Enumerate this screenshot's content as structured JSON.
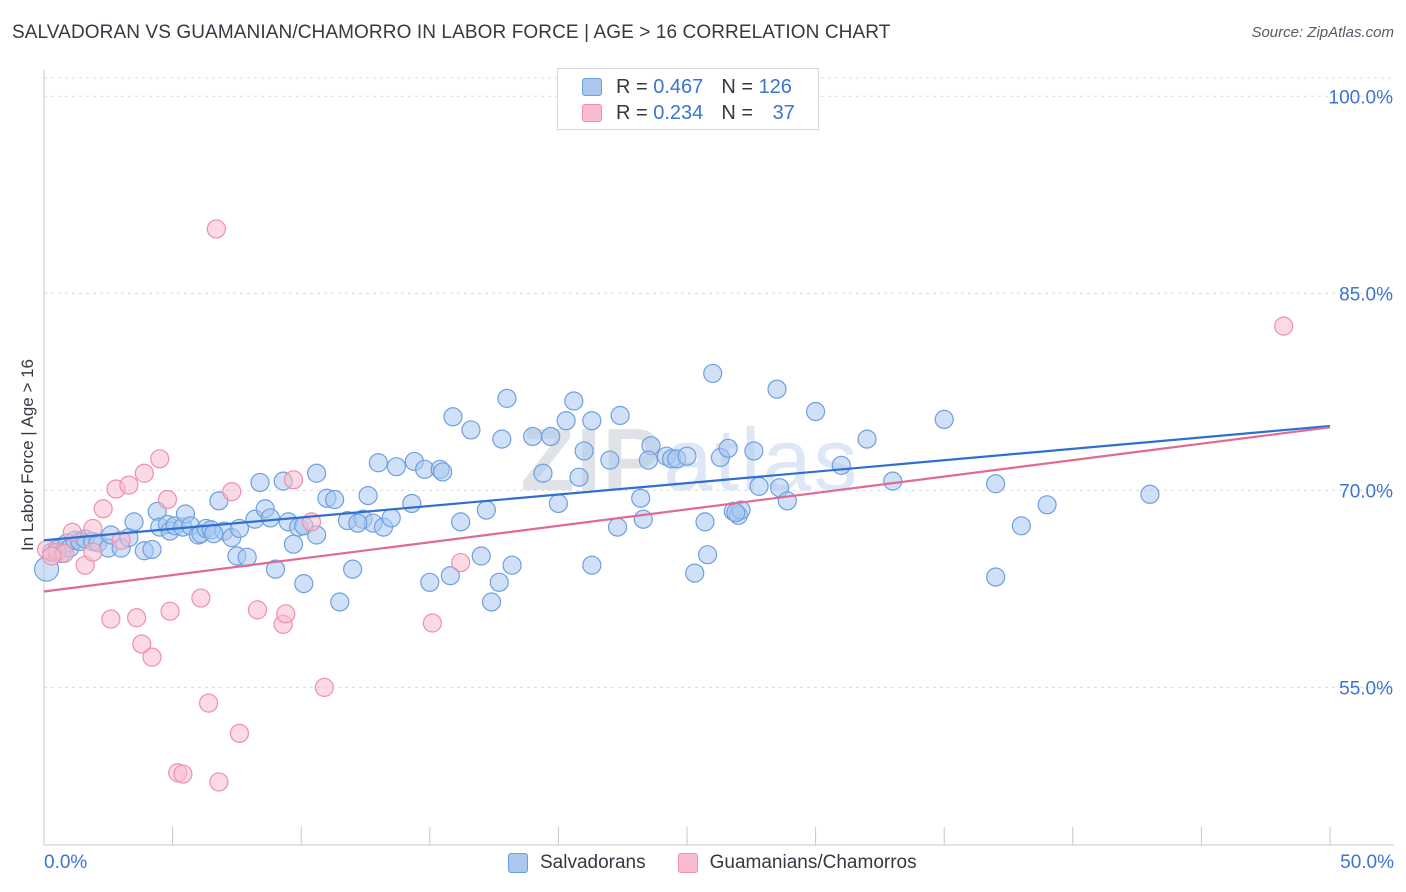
{
  "title": "SALVADORAN VS GUAMANIAN/CHAMORRO IN LABOR FORCE | AGE > 16 CORRELATION CHART",
  "source": "Source: ZipAtlas.com",
  "watermark": "ZIPatlas",
  "colors": {
    "blue_fill": "#aac8f0",
    "blue_stroke": "#6e9fe0",
    "blue_line": "#2f6fd0",
    "pink_fill": "#f7bccd",
    "pink_stroke": "#ee8fae",
    "pink_line": "#e06a94",
    "axis_text": "#3b74d1",
    "grid": "#d8dce2"
  },
  "legend": {
    "rows": [
      {
        "r_label": "R = ",
        "r_value": "0.467",
        "n_label": "N = ",
        "n_value": "126"
      },
      {
        "r_label": "R = ",
        "r_value": "0.234",
        "n_label": "N = ",
        "n_value": "37"
      }
    ]
  },
  "bottom_legend": {
    "items": [
      "Salvadorans",
      "Guamanians/Chamorros"
    ]
  },
  "chart_data": {
    "type": "scatter",
    "title": "SALVADORAN VS GUAMANIAN/CHAMORRO IN LABOR FORCE | AGE > 16 CORRELATION CHART",
    "xlabel": "",
    "ylabel": "In Labor Force | Age > 16",
    "xlim": [
      0,
      50
    ],
    "ylim": [
      43,
      102
    ],
    "x_tick_labels": {
      "min": "0.0%",
      "max": "50.0%"
    },
    "y_ticks": [
      {
        "value": 100,
        "label": "100.0%"
      },
      {
        "value": 85,
        "label": "85.0%"
      },
      {
        "value": 70,
        "label": "70.0%"
      },
      {
        "value": 55,
        "label": "55.0%"
      }
    ],
    "grid": true,
    "legend_position": "top-center",
    "series": [
      {
        "name": "Salvadorans",
        "color": "blue",
        "r": 0.467,
        "n": 126,
        "trend": {
          "x0": 0,
          "y0": 66.2,
          "x1": 50,
          "y1": 74.9
        },
        "points": [
          [
            0.1,
            64.0
          ],
          [
            0.3,
            65.3
          ],
          [
            0.5,
            65.5
          ],
          [
            0.7,
            65.2
          ],
          [
            0.9,
            66.0
          ],
          [
            1.0,
            65.6
          ],
          [
            1.2,
            66.2
          ],
          [
            1.4,
            66.1
          ],
          [
            1.6,
            66.3
          ],
          [
            1.9,
            66.1
          ],
          [
            2.1,
            66.0
          ],
          [
            2.5,
            65.6
          ],
          [
            2.6,
            66.6
          ],
          [
            3.0,
            65.6
          ],
          [
            3.3,
            66.4
          ],
          [
            3.5,
            67.6
          ],
          [
            3.9,
            65.4
          ],
          [
            4.2,
            65.5
          ],
          [
            4.4,
            68.4
          ],
          [
            4.5,
            67.2
          ],
          [
            4.8,
            67.4
          ],
          [
            4.9,
            66.9
          ],
          [
            5.1,
            67.3
          ],
          [
            5.4,
            67.2
          ],
          [
            5.5,
            68.2
          ],
          [
            5.7,
            67.3
          ],
          [
            6.0,
            66.6
          ],
          [
            6.1,
            66.7
          ],
          [
            6.3,
            67.1
          ],
          [
            6.5,
            67.0
          ],
          [
            6.8,
            69.2
          ],
          [
            7.0,
            66.9
          ],
          [
            7.3,
            66.4
          ],
          [
            7.5,
            65.0
          ],
          [
            7.6,
            67.1
          ],
          [
            7.9,
            64.9
          ],
          [
            8.2,
            67.8
          ],
          [
            8.4,
            70.6
          ],
          [
            8.6,
            68.6
          ],
          [
            8.8,
            67.9
          ],
          [
            9.0,
            64.0
          ],
          [
            9.3,
            70.7
          ],
          [
            9.5,
            67.6
          ],
          [
            9.7,
            65.9
          ],
          [
            9.9,
            67.2
          ],
          [
            10.1,
            67.3
          ],
          [
            10.6,
            66.6
          ],
          [
            10.6,
            71.3
          ],
          [
            10.1,
            62.9
          ],
          [
            11.0,
            69.4
          ],
          [
            11.3,
            69.3
          ],
          [
            11.5,
            61.5
          ],
          [
            11.8,
            67.7
          ],
          [
            12.0,
            64.0
          ],
          [
            12.4,
            67.8
          ],
          [
            12.6,
            69.6
          ],
          [
            12.8,
            67.5
          ],
          [
            13.0,
            72.1
          ],
          [
            13.2,
            67.2
          ],
          [
            13.5,
            67.9
          ],
          [
            13.7,
            71.8
          ],
          [
            14.3,
            69.0
          ],
          [
            14.4,
            72.2
          ],
          [
            14.8,
            71.6
          ],
          [
            15.0,
            63.0
          ],
          [
            15.4,
            71.6
          ],
          [
            15.5,
            71.4
          ],
          [
            15.8,
            63.5
          ],
          [
            15.9,
            75.6
          ],
          [
            16.2,
            67.6
          ],
          [
            16.6,
            74.6
          ],
          [
            17.0,
            65.0
          ],
          [
            17.2,
            68.5
          ],
          [
            17.4,
            61.5
          ],
          [
            17.7,
            63.0
          ],
          [
            17.8,
            73.9
          ],
          [
            18.0,
            77.0
          ],
          [
            18.2,
            64.3
          ],
          [
            19.0,
            74.1
          ],
          [
            19.4,
            71.3
          ],
          [
            19.7,
            74.1
          ],
          [
            20.0,
            69.0
          ],
          [
            20.3,
            75.3
          ],
          [
            20.6,
            76.8
          ],
          [
            20.8,
            71.0
          ],
          [
            21.0,
            73.0
          ],
          [
            21.3,
            64.3
          ],
          [
            21.3,
            75.3
          ],
          [
            22.0,
            72.3
          ],
          [
            22.3,
            67.2
          ],
          [
            22.4,
            75.7
          ],
          [
            23.2,
            69.4
          ],
          [
            23.3,
            67.8
          ],
          [
            23.6,
            73.4
          ],
          [
            23.5,
            72.3
          ],
          [
            24.2,
            72.6
          ],
          [
            24.4,
            72.4
          ],
          [
            24.6,
            72.4
          ],
          [
            25.0,
            72.6
          ],
          [
            25.3,
            63.7
          ],
          [
            25.7,
            67.6
          ],
          [
            26.0,
            78.9
          ],
          [
            25.8,
            65.1
          ],
          [
            26.3,
            72.5
          ],
          [
            26.6,
            73.2
          ],
          [
            26.8,
            68.4
          ],
          [
            27.0,
            68.1
          ],
          [
            27.6,
            73.0
          ],
          [
            27.8,
            70.3
          ],
          [
            28.5,
            77.7
          ],
          [
            28.6,
            70.2
          ],
          [
            28.9,
            69.2
          ],
          [
            30.0,
            76.0
          ],
          [
            31.0,
            71.9
          ],
          [
            32.0,
            73.9
          ],
          [
            33.0,
            70.7
          ],
          [
            35.0,
            75.4
          ],
          [
            37.0,
            63.4
          ],
          [
            37.0,
            70.5
          ],
          [
            38.0,
            67.3
          ],
          [
            39.0,
            68.9
          ],
          [
            43.0,
            69.7
          ],
          [
            27.1,
            68.5
          ],
          [
            26.9,
            68.3
          ],
          [
            12.2,
            67.5
          ],
          [
            6.6,
            66.7
          ]
        ]
      },
      {
        "name": "Guamanians/Chamorros",
        "color": "pink",
        "r": 0.234,
        "n": 37,
        "trend": {
          "x0": 0,
          "y0": 62.3,
          "x1": 50,
          "y1": 74.8
        },
        "points": [
          [
            0.1,
            65.5
          ],
          [
            0.5,
            65.3
          ],
          [
            0.8,
            65.2
          ],
          [
            1.1,
            66.8
          ],
          [
            1.6,
            64.3
          ],
          [
            1.9,
            67.1
          ],
          [
            1.9,
            65.3
          ],
          [
            2.3,
            68.6
          ],
          [
            2.6,
            60.2
          ],
          [
            2.8,
            70.1
          ],
          [
            3.0,
            66.2
          ],
          [
            3.3,
            70.4
          ],
          [
            3.6,
            60.3
          ],
          [
            3.8,
            58.3
          ],
          [
            3.9,
            71.3
          ],
          [
            4.2,
            57.3
          ],
          [
            4.5,
            72.4
          ],
          [
            4.8,
            69.3
          ],
          [
            4.9,
            60.8
          ],
          [
            5.2,
            48.5
          ],
          [
            5.4,
            48.4
          ],
          [
            6.1,
            61.8
          ],
          [
            6.4,
            53.8
          ],
          [
            6.7,
            89.9
          ],
          [
            6.8,
            47.8
          ],
          [
            7.3,
            69.9
          ],
          [
            7.6,
            51.5
          ],
          [
            8.3,
            60.9
          ],
          [
            9.3,
            59.8
          ],
          [
            9.4,
            60.6
          ],
          [
            9.7,
            70.8
          ],
          [
            10.4,
            67.6
          ],
          [
            10.9,
            55.0
          ],
          [
            15.1,
            59.9
          ],
          [
            16.2,
            64.5
          ],
          [
            48.2,
            82.5
          ],
          [
            0.3,
            65.0
          ]
        ]
      }
    ]
  }
}
